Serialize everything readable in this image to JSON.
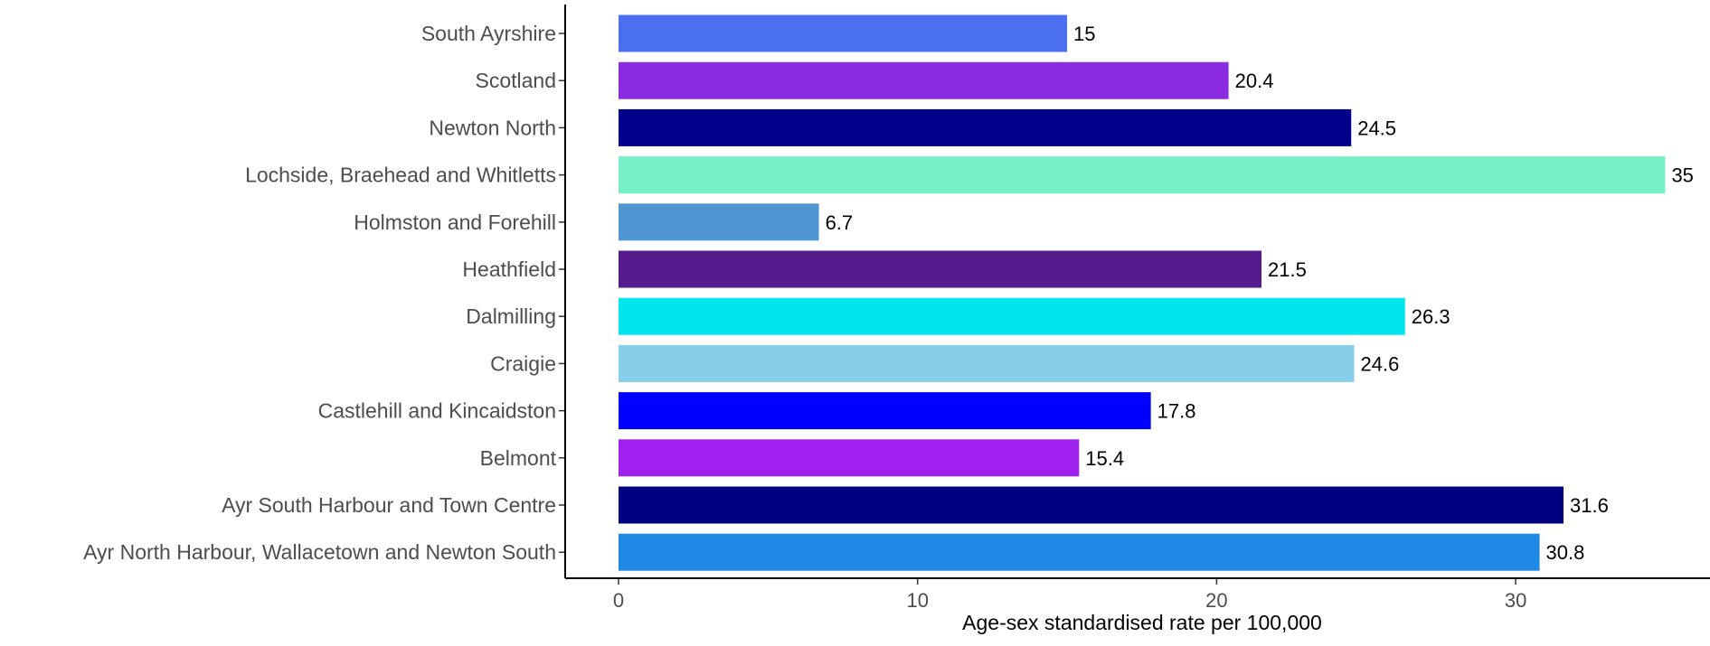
{
  "chart_data": {
    "type": "bar",
    "orientation": "horizontal",
    "title": "",
    "xlabel": "Age-sex standardised rate per 100,000",
    "ylabel": "",
    "xlim": [
      0,
      36
    ],
    "xticks": [
      0,
      10,
      20,
      30
    ],
    "grid": false,
    "legend": "none",
    "categories": [
      "South Ayrshire",
      "Scotland",
      "Newton North",
      "Lochside, Braehead and Whitletts",
      "Holmston and Forehill",
      "Heathfield",
      "Dalmilling",
      "Craigie",
      "Castlehill and Kincaidston",
      "Belmont",
      "Ayr South Harbour and Town Centre",
      "Ayr North Harbour, Wallacetown and Newton South"
    ],
    "values": [
      15,
      20.4,
      24.5,
      35,
      6.7,
      21.5,
      26.3,
      24.6,
      17.8,
      15.4,
      31.6,
      30.8
    ],
    "value_labels": [
      "15",
      "20.4",
      "24.5",
      "35",
      "6.7",
      "21.5",
      "26.3",
      "24.6",
      "17.8",
      "15.4",
      "31.6",
      "30.8"
    ],
    "colors": [
      "#4a6ff0",
      "#8a2be2",
      "#00008b",
      "#76eec6",
      "#5096d3",
      "#551a8b",
      "#00e5ee",
      "#87ceeb",
      "#0000ff",
      "#a020f0",
      "#000080",
      "#1e88e5"
    ]
  }
}
